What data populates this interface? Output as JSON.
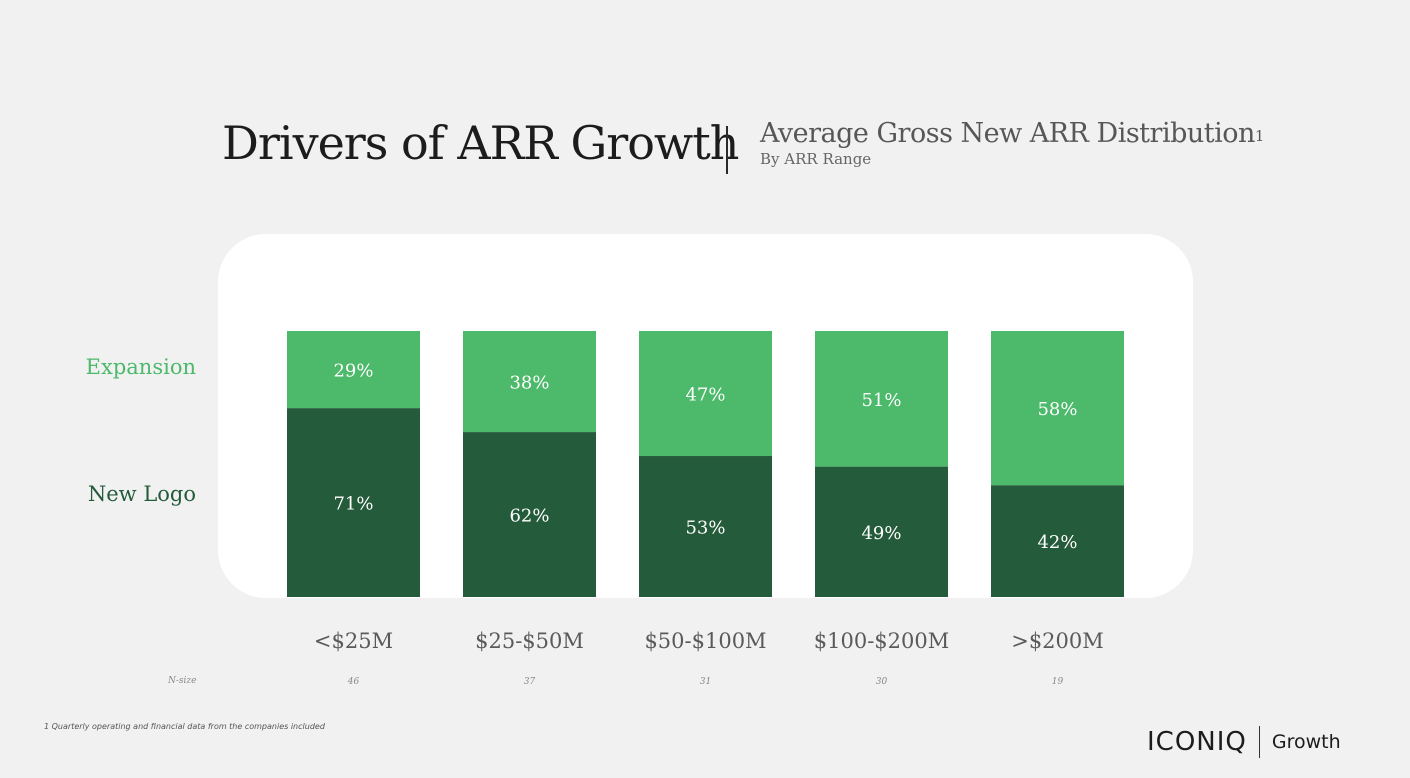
{
  "header": {
    "title": "Drivers of ARR Growth",
    "subtitle": "Average Gross New ARR Distribution",
    "subtitle_note_marker": "1",
    "subsubtitle": "By ARR Range"
  },
  "colors": {
    "expansion": "#4cb96b",
    "new_logo": "#245b3a",
    "card": "#ffffff",
    "background": "#f1f1f1"
  },
  "chart_data": {
    "type": "bar",
    "stacked": true,
    "title": "Average Gross New ARR Distribution",
    "subtitle": "By ARR Range",
    "categories": [
      "<$25M",
      "$25-$50M",
      "$50-$100M",
      "$100-$200M",
      ">$200M"
    ],
    "series": [
      {
        "name": "New Logo",
        "values": [
          71,
          62,
          53,
          49,
          42
        ]
      },
      {
        "name": "Expansion",
        "values": [
          29,
          38,
          47,
          51,
          58
        ]
      }
    ],
    "n_size_label": "N-size",
    "n_size": [
      46,
      37,
      31,
      30,
      19
    ],
    "ylim": [
      0,
      100
    ],
    "unit": "%",
    "grid": false,
    "legend_placement": "left"
  },
  "footnote": "1 Quarterly operating and financial data from the companies included",
  "logo": {
    "main": "ICONIQ",
    "sub": "Growth"
  }
}
